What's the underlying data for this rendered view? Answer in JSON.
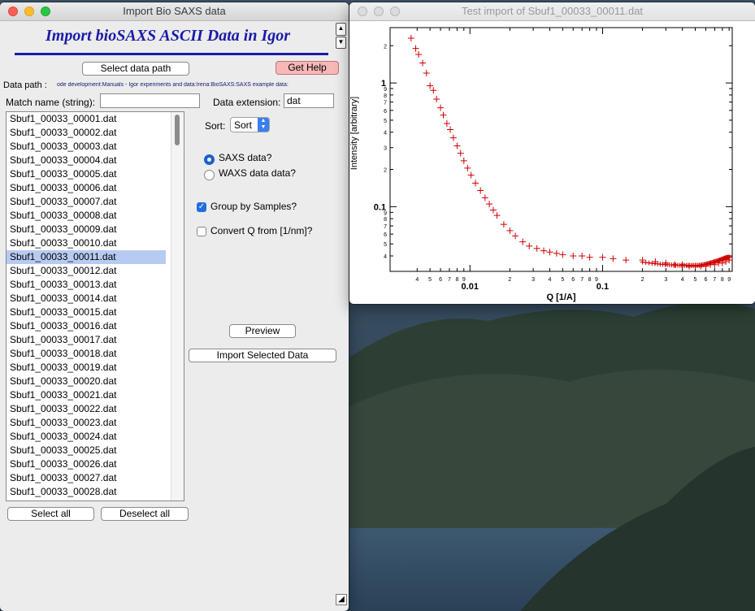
{
  "import_window": {
    "title": "Import Bio SAXS data",
    "heading": "Import bioSAXS ASCII Data in Igor",
    "select_path_label": "Select data path",
    "get_help_label": "Get Help",
    "data_path_label": "Data path :",
    "data_path_value": "ode development:Manuals - Igor experiments and data:Irena:BioSAXS:SAXS example data:",
    "match_name_label": "Match name (string):",
    "match_name_value": "",
    "data_extension_label": "Data extension:",
    "data_extension_value": "dat",
    "sort_label": "Sort:",
    "sort_value": "Sort",
    "saxs_label": "SAXS data?",
    "waxs_label": "WAXS data data?",
    "saxs_selected": true,
    "group_label": "Group by Samples?",
    "group_checked": true,
    "convert_label": "Convert Q from [1/nm]?",
    "convert_checked": false,
    "preview_label": "Preview",
    "import_label": "Import Selected Data",
    "select_all_label": "Select all",
    "deselect_all_label": "Deselect all",
    "selected_file": "Sbuf1_00033_00011.dat",
    "files": [
      "Sbuf1_00033_00001.dat",
      "Sbuf1_00033_00002.dat",
      "Sbuf1_00033_00003.dat",
      "Sbuf1_00033_00004.dat",
      "Sbuf1_00033_00005.dat",
      "Sbuf1_00033_00006.dat",
      "Sbuf1_00033_00007.dat",
      "Sbuf1_00033_00008.dat",
      "Sbuf1_00033_00009.dat",
      "Sbuf1_00033_00010.dat",
      "Sbuf1_00033_00011.dat",
      "Sbuf1_00033_00012.dat",
      "Sbuf1_00033_00013.dat",
      "Sbuf1_00033_00014.dat",
      "Sbuf1_00033_00015.dat",
      "Sbuf1_00033_00016.dat",
      "Sbuf1_00033_00017.dat",
      "Sbuf1_00033_00018.dat",
      "Sbuf1_00033_00019.dat",
      "Sbuf1_00033_00020.dat",
      "Sbuf1_00033_00021.dat",
      "Sbuf1_00033_00022.dat",
      "Sbuf1_00033_00023.dat",
      "Sbuf1_00033_00024.dat",
      "Sbuf1_00033_00025.dat",
      "Sbuf1_00033_00026.dat",
      "Sbuf1_00033_00027.dat",
      "Sbuf1_00033_00028.dat"
    ],
    "icons": {
      "scroll_up": "up-arrow-icon",
      "scroll_down": "down-arrow-icon",
      "resize": "resize-grip-icon",
      "popup": "popup-arrows-icon"
    },
    "colors": {
      "heading": "#1a1aa8",
      "help_button": "#f7b7b7",
      "selection": "#b7cbf2",
      "radio_on": "#1f5fcf"
    }
  },
  "graph_window": {
    "title": "Test import of Sbuf1_00033_00011.dat",
    "colors": {
      "marker": "#d00000"
    }
  },
  "chart_data": {
    "type": "scatter",
    "xlabel": "Q [1/A]",
    "ylabel": "Intensity [arbitrary]",
    "xscale": "log",
    "yscale": "log",
    "xlim": [
      0.0025,
      0.95
    ],
    "ylim": [
      0.03,
      2.8
    ],
    "x_major_ticks": [
      "0.01",
      "0.1"
    ],
    "x_minor_tick_labels": [
      "4",
      "5",
      "6",
      "7",
      "8",
      "9",
      "2",
      "3",
      "4",
      "5",
      "6",
      "7",
      "8",
      "9",
      "2",
      "3",
      "4",
      "5",
      "6",
      "7",
      "8",
      "9"
    ],
    "y_major_ticks": [
      "1",
      "0.1"
    ],
    "y_minor_tick_labels": [
      "2",
      "9",
      "8",
      "7",
      "6",
      "5",
      "4",
      "3",
      "2",
      "9",
      "8",
      "7",
      "6",
      "5",
      "4"
    ],
    "grid": false,
    "marker": "+",
    "series": [
      {
        "x": [
          0.0036,
          0.0039,
          0.0041,
          0.0044,
          0.0047,
          0.005,
          0.0053,
          0.0056,
          0.006,
          0.0063,
          0.0067,
          0.0071,
          0.0075,
          0.008,
          0.0085,
          0.009,
          0.0096,
          0.0102,
          0.011,
          0.012,
          0.013,
          0.014,
          0.015,
          0.016,
          0.018,
          0.02,
          0.022,
          0.025,
          0.028,
          0.032,
          0.036,
          0.04,
          0.045,
          0.05,
          0.06,
          0.07,
          0.08,
          0.1,
          0.12,
          0.15,
          0.2,
          0.25,
          0.3,
          0.35,
          0.4,
          0.45,
          0.5,
          0.55,
          0.6,
          0.65,
          0.7,
          0.75,
          0.8,
          0.85,
          0.9
        ],
        "y": [
          2.3,
          1.9,
          1.7,
          1.45,
          1.2,
          0.95,
          0.87,
          0.74,
          0.63,
          0.55,
          0.47,
          0.42,
          0.36,
          0.31,
          0.27,
          0.235,
          0.205,
          0.18,
          0.155,
          0.135,
          0.118,
          0.105,
          0.094,
          0.085,
          0.072,
          0.064,
          0.058,
          0.052,
          0.048,
          0.046,
          0.044,
          0.043,
          0.042,
          0.041,
          0.04,
          0.04,
          0.039,
          0.039,
          0.038,
          0.037,
          0.037,
          0.036,
          0.035,
          0.034,
          0.034,
          0.033,
          0.033,
          0.033,
          0.033,
          0.034,
          0.034,
          0.035,
          0.035,
          0.036,
          0.037
        ]
      }
    ]
  }
}
